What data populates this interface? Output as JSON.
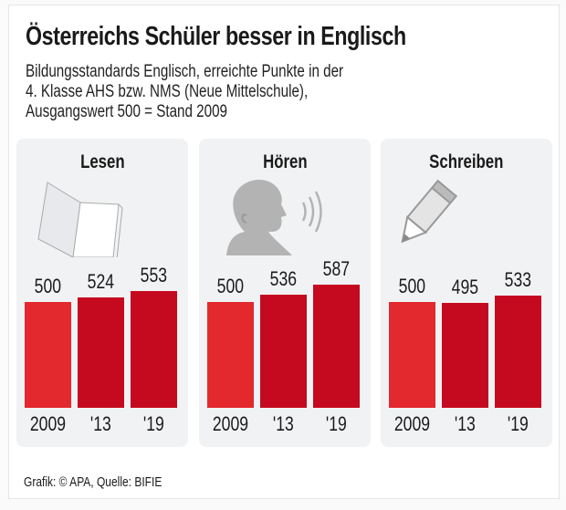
{
  "header": {
    "title": "Österreichs Schüler besser in Englisch",
    "subtitle_lines": [
      "Bildungsstandards Englisch, erreichte Punkte in der",
      "4. Klasse AHS bzw. NMS (Neue Mittelschule),",
      "Ausgangswert 500 = Stand 2009"
    ]
  },
  "chart_data": [
    {
      "type": "bar",
      "title": "Lesen",
      "icon": "book-icon",
      "categories": [
        "2009",
        "'13",
        "'19"
      ],
      "values": [
        500,
        524,
        553
      ]
    },
    {
      "type": "bar",
      "title": "Hören",
      "icon": "head-listening-icon",
      "categories": [
        "2009",
        "'13",
        "'19"
      ],
      "values": [
        500,
        536,
        587
      ]
    },
    {
      "type": "bar",
      "title": "Schreiben",
      "icon": "pencil-icon",
      "categories": [
        "2009",
        "'13",
        "'19"
      ],
      "values": [
        500,
        495,
        533
      ]
    }
  ],
  "colors": {
    "baseline_bar": "#e3282e",
    "bar": "#c50a1f",
    "panel": "#f1f2f4"
  },
  "footer": {
    "source": "Grafik: © APA, Quelle: BIFIE"
  }
}
